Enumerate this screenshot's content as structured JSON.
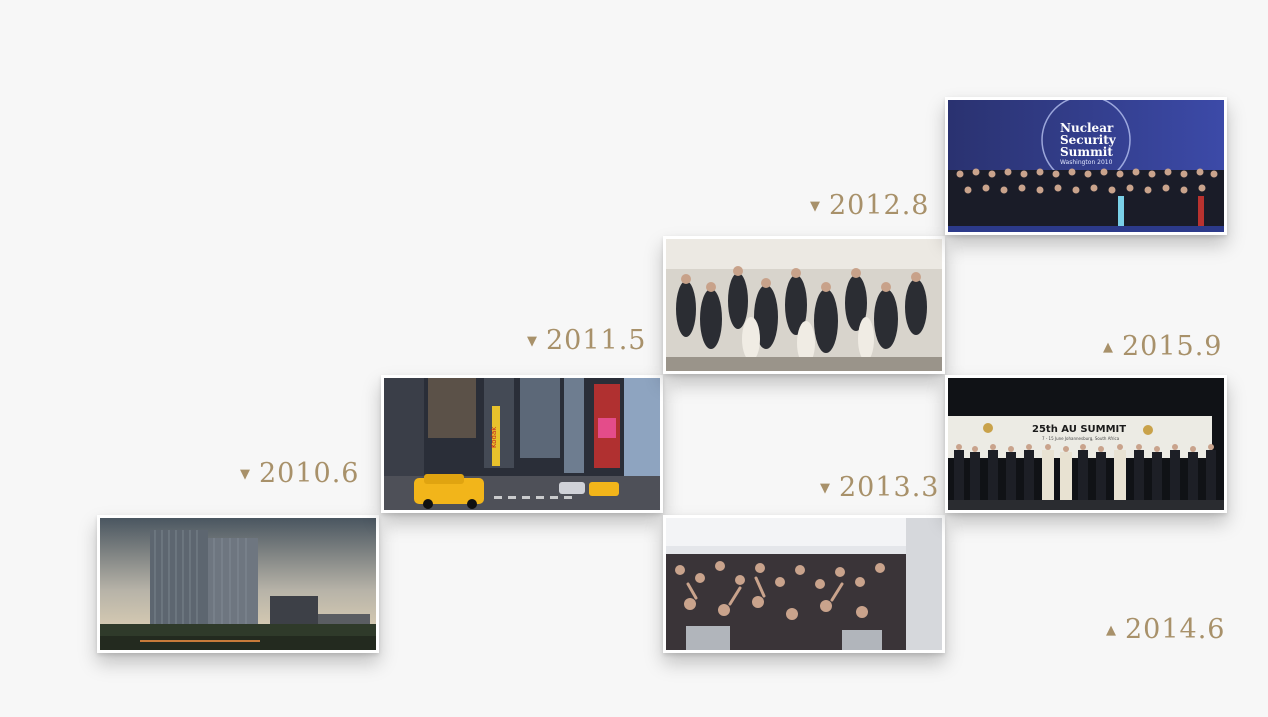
{
  "timeline": [
    {
      "year": "2010.6",
      "marker": "▼"
    },
    {
      "year": "2011.5",
      "marker": "▼"
    },
    {
      "year": "2012.8",
      "marker": "▼"
    },
    {
      "year": "2013.3",
      "marker": "▼"
    },
    {
      "year": "2014.6",
      "marker": "▲"
    },
    {
      "year": "2015.9",
      "marker": "▲"
    }
  ],
  "photos": {
    "nuclear_summit": {
      "title_lines": [
        "Nuclear",
        "Security",
        "Summit"
      ],
      "subtitle": "Washington 2010"
    },
    "au_summit": {
      "title": "25th AU SUMMIT",
      "subtitle": "7 - 15 June Johannesburg, South Africa"
    },
    "times_square": {
      "sign": "Kodak"
    }
  },
  "colors": {
    "accent": "#a8916a",
    "background": "#f7f7f7"
  }
}
